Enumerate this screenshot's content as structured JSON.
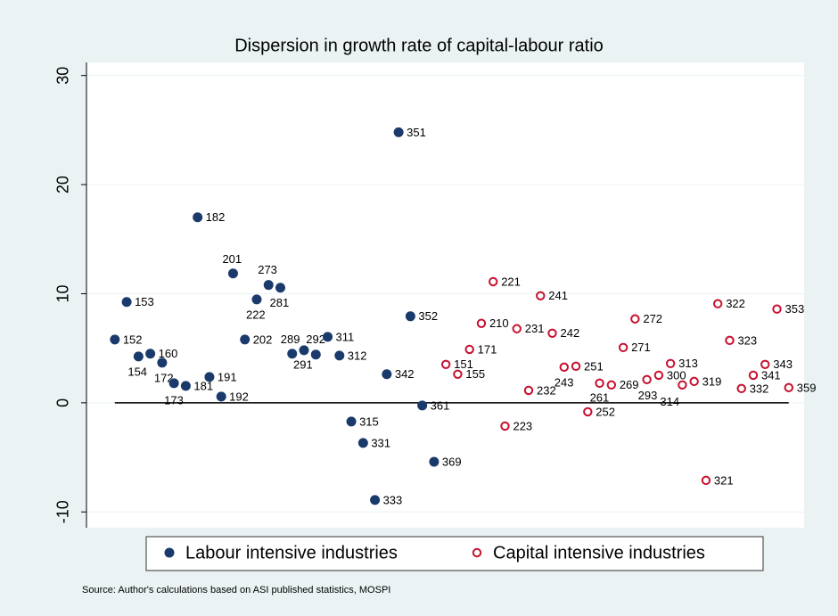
{
  "chart_data": {
    "type": "scatter",
    "title": "Dispersion in growth rate of capital-labour ratio",
    "note": "Source: Author's calculations based on ASI published statistics, MOSPI",
    "ylim": [
      -11.45,
      31.2
    ],
    "yticks": [
      -10,
      0,
      10,
      20,
      30
    ],
    "xlim": [
      -1.4,
      59.3
    ],
    "grid": true,
    "reference_line": 0,
    "legend": "bottom",
    "series": [
      {
        "name": "Labour intensive industries",
        "color": "#1a3a6b",
        "marker": "filled",
        "labels": [
          "152",
          "153",
          "154",
          "160",
          "172",
          "173",
          "181",
          "182",
          "191",
          "192",
          "201",
          "202",
          "222",
          "273",
          "281",
          "289",
          "291",
          "292",
          "311",
          "312",
          "315",
          "331",
          "333",
          "342",
          "351",
          "352",
          "361",
          "369"
        ],
        "x": [
          1,
          2,
          3,
          4,
          5,
          6,
          7,
          8,
          9,
          10,
          11,
          12,
          13,
          14,
          15,
          16,
          17,
          18,
          19,
          20,
          21,
          22,
          23,
          24,
          25,
          26,
          27,
          28
        ],
        "values": [
          5.8,
          9.24,
          4.25,
          4.5,
          3.68,
          1.8,
          1.55,
          17.0,
          2.37,
          0.57,
          11.86,
          5.8,
          9.48,
          10.8,
          10.55,
          4.5,
          4.82,
          4.42,
          6.05,
          4.33,
          -1.72,
          -3.68,
          -8.91,
          2.62,
          24.8,
          7.93,
          -0.25,
          -5.4
        ]
      },
      {
        "name": "Capital intensive industries",
        "color": "#c8102e",
        "marker": "hollow",
        "labels": [
          "151",
          "155",
          "171",
          "210",
          "221",
          "223",
          "231",
          "232",
          "241",
          "242",
          "243",
          "251",
          "252",
          "261",
          "269",
          "271",
          "272",
          "293",
          "300",
          "313",
          "314",
          "319",
          "321",
          "322",
          "323",
          "332",
          "341",
          "343",
          "353",
          "359"
        ],
        "x": [
          29,
          30,
          31,
          32,
          33,
          34,
          35,
          36,
          37,
          38,
          39,
          40,
          41,
          42,
          43,
          44,
          45,
          46,
          47,
          48,
          49,
          50,
          51,
          52,
          53,
          54,
          55,
          56,
          57,
          58
        ],
        "values": [
          3.52,
          2.62,
          4.9,
          7.28,
          11.1,
          -2.13,
          6.79,
          1.14,
          9.81,
          6.38,
          3.27,
          3.35,
          -0.82,
          1.8,
          1.64,
          5.07,
          7.69,
          2.13,
          2.53,
          3.6,
          1.64,
          1.96,
          -7.11,
          9.08,
          5.72,
          1.31,
          2.53,
          3.52,
          8.59,
          1.39
        ]
      }
    ]
  }
}
